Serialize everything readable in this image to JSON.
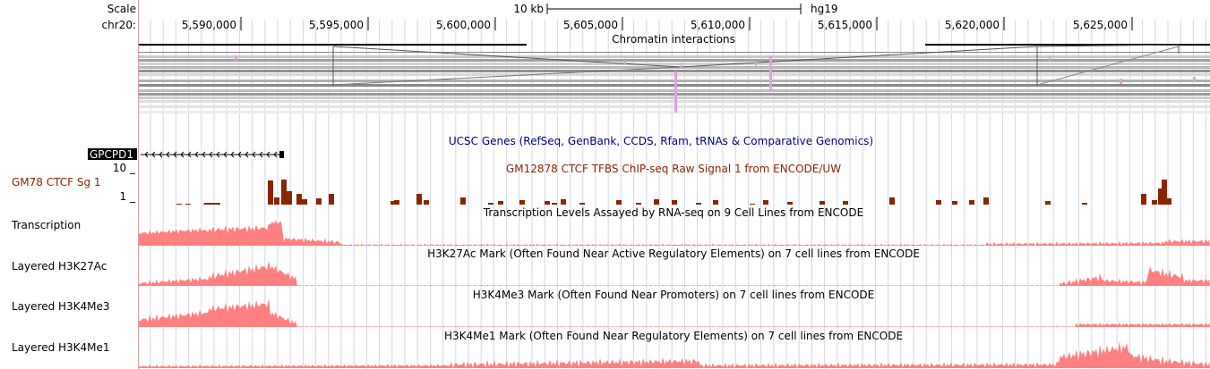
{
  "ruler": {
    "scale_label": "Scale",
    "chrom_label": "chr20:",
    "scale_bar_text": "10 kb",
    "assembly": "hg19",
    "positions": [
      "5,590,000",
      "5,595,000",
      "5,600,000",
      "5,605,000",
      "5,610,000",
      "5,615,000",
      "5,620,000",
      "5,625,000"
    ]
  },
  "tracks": {
    "chromatin": {
      "title": "Chromatin interactions"
    },
    "genes": {
      "title": "UCSC Genes (RefSeq, GenBank, CCDS, Rfam, tRNAs & Comparative Genomics)",
      "gene_name": "GPCPD1"
    },
    "ctcf": {
      "label": "GM78 CTCF Sg 1",
      "title": "GM12878 CTCF TFBS ChIP-seq Raw Signal 1 from ENCODE/UW",
      "ymax": "10 _",
      "ymin": "1 _"
    },
    "transcription": {
      "label": "Transcription",
      "title": "Transcription Levels Assayed by RNA-seq on 9 Cell Lines from ENCODE"
    },
    "h3k27ac": {
      "label": "Layered H3K27Ac",
      "title": "H3K27Ac Mark (Often Found Near Active Regulatory Elements) on 7 cell lines from ENCODE"
    },
    "h3k4me3": {
      "label": "Layered H3K4Me3",
      "title": "H3K4Me3 Mark (Often Found Near Promoters) on 7 cell lines from ENCODE"
    },
    "h3k4me1": {
      "label": "Layered H3K4Me1",
      "title": "H3K4Me1 Mark (Often Found Near Regulatory Elements) on 7 cell lines from ENCODE"
    }
  },
  "colors": {
    "ctcf": "#8b2500",
    "signal": "#ff8080",
    "genes_title": "#000080",
    "gene_label_bg": "#000000",
    "grid": "#c8c8e6",
    "interaction_highlight": "#e0a0e0"
  }
}
